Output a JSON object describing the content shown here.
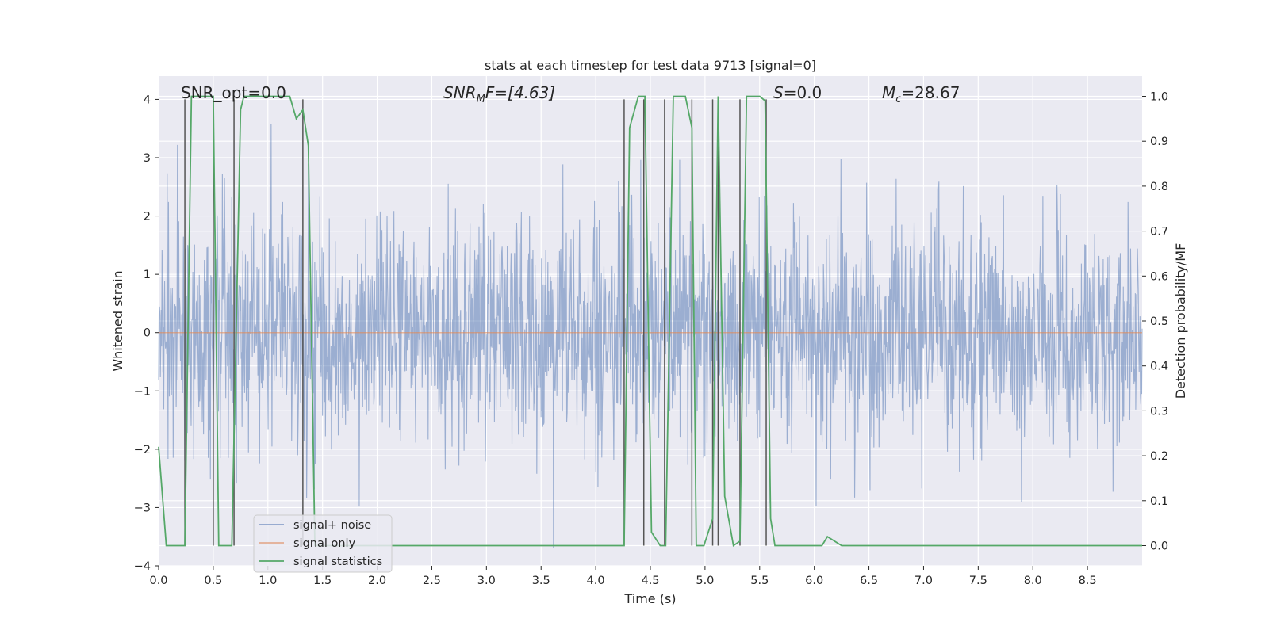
{
  "chart_data": {
    "type": "line",
    "title": "stats at each timestep for test data 9713 [signal=0]",
    "xlabel": "Time (s)",
    "ylabel": "Whitened strain",
    "ylabel_right": "Detection probability/MF",
    "xlim": [
      0,
      9.0
    ],
    "ylim": [
      -4,
      4.4
    ],
    "ylim_right": [
      -0.045,
      1.045
    ],
    "x_ticks": [
      0.0,
      0.5,
      1.0,
      1.5,
      2.0,
      2.5,
      3.0,
      3.5,
      4.0,
      4.5,
      5.0,
      5.5,
      6.0,
      6.5,
      7.0,
      7.5,
      8.0,
      8.5
    ],
    "x_tick_labels": [
      "0.0",
      "0.5",
      "1.0",
      "1.5",
      "2.0",
      "2.5",
      "3.0",
      "3.5",
      "4.0",
      "4.5",
      "5.0",
      "5.5",
      "6.0",
      "6.5",
      "7.0",
      "7.5",
      "8.0",
      "8.5"
    ],
    "y_ticks": [
      4,
      3,
      2,
      1,
      0,
      -1,
      -2,
      -3,
      -4
    ],
    "y_tick_labels": [
      "4",
      "3",
      "2",
      "1",
      "0",
      "−1",
      "−2",
      "−3",
      "−4"
    ],
    "y_right_ticks": [
      1.0,
      0.9,
      0.8,
      0.7,
      0.6,
      0.5,
      0.4,
      0.3,
      0.2,
      0.1,
      0.0
    ],
    "y_right_tick_labels": [
      "1.0",
      "0.9",
      "0.8",
      "0.7",
      "0.6",
      "0.5",
      "0.4",
      "0.3",
      "0.2",
      "0.1",
      "0.0"
    ],
    "grid": true,
    "annotations": {
      "snr_opt": "SNR_opt=0.0",
      "snr_mf_base": "SNR",
      "snr_mf_sub": "M",
      "snr_mf_rest": "F=[4.63]",
      "s_sym": "S",
      "s_rest": "=0.0",
      "mc_sym": "M",
      "mc_sub": "c",
      "mc_rest": "=28.67"
    },
    "legend": {
      "position": "lower-left",
      "entries": [
        "signal+ noise",
        "signal only",
        "signal statistics"
      ]
    },
    "series": [
      {
        "name": "signal+ noise",
        "axis": "left",
        "color": "#4c72b0",
        "description_values": "whitened noise, approx. std 0.95, range about -3.5 to 4.0",
        "noise_std": 0.95,
        "samples": 2300
      },
      {
        "name": "signal only",
        "axis": "left",
        "color": "#dd8452",
        "x": [
          0.0,
          9.0
        ],
        "y": [
          0.0,
          0.0
        ]
      },
      {
        "name": "signal statistics",
        "axis": "right",
        "color": "#55a868",
        "x": [
          0.0,
          0.07,
          0.17,
          0.24,
          0.3,
          0.5,
          0.55,
          0.67,
          0.75,
          0.78,
          1.0,
          1.2,
          1.26,
          1.32,
          1.37,
          1.43,
          1.5,
          4.26,
          4.31,
          4.39,
          4.45,
          4.51,
          4.59,
          4.64,
          4.71,
          4.82,
          4.88,
          4.92,
          4.99,
          5.07,
          5.12,
          5.18,
          5.26,
          5.32,
          5.38,
          5.5,
          5.55,
          5.6,
          5.64,
          5.72,
          6.07,
          6.12,
          6.25,
          9.0
        ],
        "y": [
          0.22,
          0.0,
          0.0,
          0.0,
          1.0,
          1.0,
          0.0,
          0.0,
          0.97,
          1.0,
          1.0,
          1.0,
          0.95,
          0.97,
          0.89,
          0.0,
          0.0,
          0.0,
          0.93,
          1.0,
          1.0,
          0.03,
          0.0,
          0.0,
          1.0,
          1.0,
          0.93,
          0.0,
          0.0,
          0.06,
          1.0,
          0.11,
          0.0,
          0.01,
          1.0,
          1.0,
          0.99,
          0.06,
          0.0,
          0.0,
          0.0,
          0.02,
          0.0,
          0.0
        ]
      }
    ],
    "vertical_lines": {
      "color": "#555555",
      "x": [
        0.24,
        0.5,
        0.69,
        1.32,
        4.26,
        4.44,
        4.63,
        4.88,
        5.07,
        5.12,
        5.32,
        5.56
      ]
    }
  }
}
